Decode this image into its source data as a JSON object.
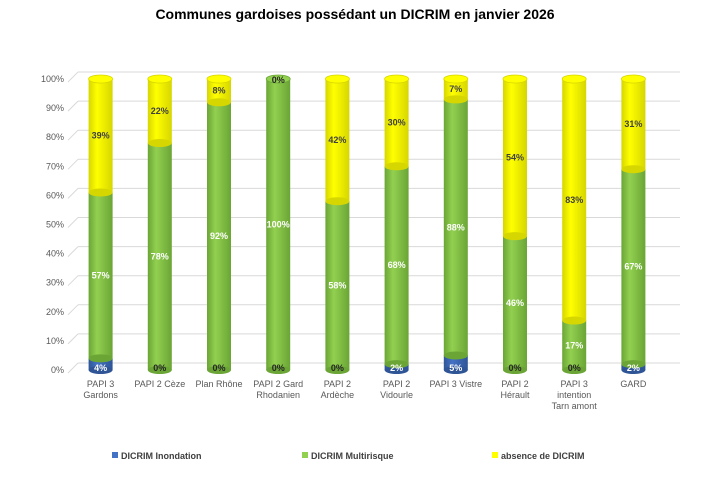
{
  "chart_data": {
    "type": "bar",
    "stacked": true,
    "title": "Communes gardoises possédant un DICRIM en janvier 2026",
    "xlabel": "",
    "ylabel": "",
    "ylim": [
      0,
      100
    ],
    "yticks": [
      "0%",
      "10%",
      "20%",
      "30%",
      "40%",
      "50%",
      "60%",
      "70%",
      "80%",
      "90%",
      "100%"
    ],
    "grid": true,
    "legend_position": "bottom",
    "categories": [
      [
        "PAPI 3",
        "Gardons"
      ],
      [
        "PAPI 2 Cèze"
      ],
      [
        "Plan Rhône"
      ],
      [
        "PAPI 2 Gard",
        "Rhodanien"
      ],
      [
        "PAPI 2",
        "Ardèche"
      ],
      [
        "PAPI 2",
        "Vidourle"
      ],
      [
        "PAPI 3 Vistre"
      ],
      [
        "PAPI 2",
        "Hérault"
      ],
      [
        "PAPI 3",
        "intention",
        "Tarn amont"
      ],
      [
        "GARD"
      ]
    ],
    "series": [
      {
        "name": "DICRIM Inondation",
        "color": "#4472C4",
        "values": [
          4,
          0,
          0,
          0,
          0,
          2,
          5,
          0,
          0,
          2
        ]
      },
      {
        "name": "DICRIM Multirisque",
        "color": "#92D050",
        "values": [
          57,
          78,
          92,
          100,
          58,
          68,
          88,
          46,
          17,
          67
        ]
      },
      {
        "name": "absence de DICRIM",
        "color": "#FFFF00",
        "values": [
          39,
          22,
          8,
          0,
          42,
          30,
          7,
          54,
          83,
          31
        ]
      }
    ]
  }
}
